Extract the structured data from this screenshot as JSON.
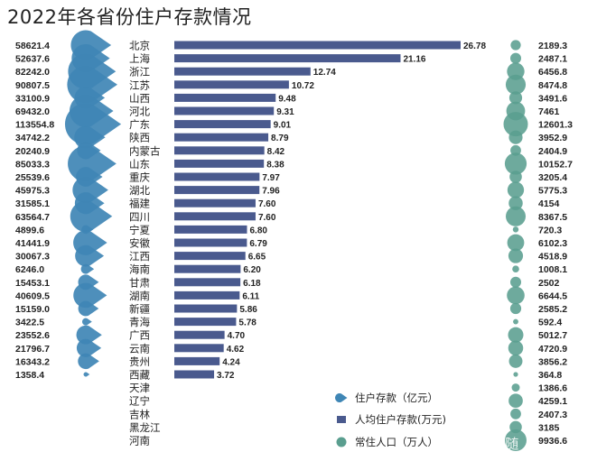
{
  "title": "2022年各省份住户存款情况",
  "chart_data": {
    "type": "bar",
    "title": "2022年各省份住户存款情况",
    "categories": [
      "北京",
      "上海",
      "浙江",
      "江苏",
      "山西",
      "河北",
      "广东",
      "陕西",
      "内蒙古",
      "山东",
      "重庆",
      "湖北",
      "福建",
      "四川",
      "宁夏",
      "安徽",
      "江西",
      "海南",
      "甘肃",
      "湖南",
      "新疆",
      "青海",
      "广西",
      "云南",
      "贵州",
      "西藏",
      "天津",
      "辽宁",
      "吉林",
      "黑龙江",
      "河南"
    ],
    "series": [
      {
        "name": "住户存款（亿元）",
        "values": [
          58621.4,
          52637.6,
          82242.0,
          90807.5,
          33100.9,
          69432.0,
          113554.8,
          34742.2,
          20240.9,
          85033.3,
          25539.6,
          45975.3,
          31585.1,
          63564.7,
          4899.6,
          41441.9,
          30067.3,
          6246.0,
          15453.1,
          40609.5,
          15159.0,
          3422.5,
          23552.6,
          21796.7,
          16343.2,
          1358.4,
          null,
          null,
          null,
          null,
          null
        ]
      },
      {
        "name": "人均住户存款(万元)",
        "values": [
          26.78,
          21.16,
          12.74,
          10.72,
          9.48,
          9.31,
          9.01,
          8.79,
          8.42,
          8.38,
          7.97,
          7.96,
          7.6,
          7.6,
          6.8,
          6.79,
          6.65,
          6.2,
          6.18,
          6.11,
          5.86,
          5.78,
          4.7,
          4.62,
          4.24,
          3.72,
          null,
          null,
          null,
          null,
          null
        ]
      },
      {
        "name": "常住人口（万人）",
        "values": [
          2189.3,
          2487.1,
          6456.8,
          8474.8,
          3491.6,
          7461,
          12601.3,
          3952.9,
          2404.9,
          10152.7,
          3205.4,
          5775.3,
          4154,
          8367.5,
          720.3,
          6102.3,
          4518.9,
          1008.1,
          2502,
          6644.5,
          2585.2,
          592.4,
          5012.7,
          4720.9,
          3856.2,
          364.8,
          1386.6,
          4259.1,
          2407.3,
          3185,
          9936.6
        ]
      }
    ],
    "xlim": [
      0,
      28
    ],
    "legend": "bottom-right"
  },
  "legend": [
    {
      "label": "住户存款（亿元）",
      "color": "#3f86b5",
      "shape": "drop"
    },
    {
      "label": "人均住户存款(万元)",
      "color": "#4a5a8e",
      "shape": "square"
    },
    {
      "label": "常住人口（万人）",
      "color": "#5a9e8f",
      "shape": "circle"
    }
  ],
  "colors": {
    "deposit": "#3f86b5",
    "per_capita": "#4a5a8e",
    "population": "#5a9e8f"
  },
  "watermark": "雪球 · 柏随"
}
